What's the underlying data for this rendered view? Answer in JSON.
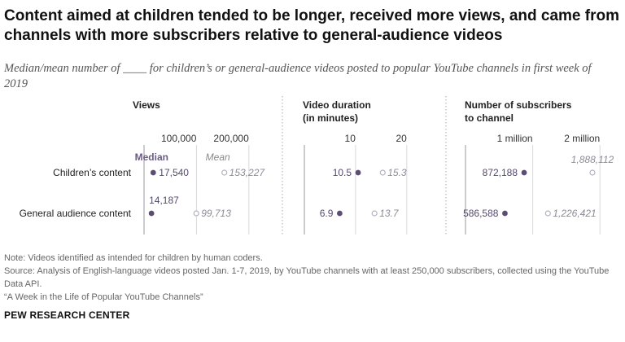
{
  "header": {
    "title": "Content aimed at children tended to be longer, received more views, and came from channels with more subscribers relative to general-audience videos",
    "subtitle": "Median/mean number of ____ for children’s or general-audience videos posted to popular YouTube channels in first week of 2019"
  },
  "colors": {
    "median": "#5b4e72",
    "mean": "#b5b1c0",
    "grid": "#d9d9d9",
    "divider": "#aaaaaa"
  },
  "chart_data": {
    "type": "dot",
    "rows": [
      "Children’s content",
      "General audience content"
    ],
    "legend": {
      "median": "Median",
      "mean": "Mean"
    },
    "panels": [
      {
        "title_lines": [
          "Views"
        ],
        "range": [
          0,
          250000
        ],
        "ticks": [
          100000,
          200000
        ],
        "tick_labels": [
          "100,000",
          "200,000"
        ],
        "median": [
          17540,
          14187
        ],
        "mean": [
          153227,
          99713
        ],
        "median_labels": [
          "17,540",
          "14,187"
        ],
        "mean_labels": [
          "153,227",
          "99,713"
        ]
      },
      {
        "title_lines": [
          "Video duration",
          "(in minutes)"
        ],
        "range": [
          0,
          24
        ],
        "ticks": [
          10,
          20
        ],
        "tick_labels": [
          "10",
          "20"
        ],
        "median": [
          10.5,
          6.9
        ],
        "mean": [
          15.3,
          13.7
        ],
        "median_labels": [
          "10.5",
          "6.9"
        ],
        "mean_labels": [
          "15.3",
          "13.7"
        ]
      },
      {
        "title_lines": [
          "Number of subscribers",
          "to channel"
        ],
        "range": [
          0,
          2300000
        ],
        "ticks": [
          1000000,
          2000000
        ],
        "tick_labels": [
          "1 million",
          "2 million"
        ],
        "median": [
          872188,
          586588
        ],
        "mean": [
          1888112,
          1226421
        ],
        "median_labels": [
          "872,188",
          "586,588"
        ],
        "mean_labels": [
          "1,888,112",
          "1,226,421"
        ]
      }
    ]
  },
  "footer": {
    "note": "Note: Videos identified as intended for children by human coders.",
    "source": "Source: Analysis of English-language videos posted Jan. 1-7, 2019, by YouTube channels with at least 250,000 subscribers, collected using the YouTube Data API.",
    "report": "“A Week in the Life of Popular YouTube Channels”",
    "credit": "PEW RESEARCH CENTER"
  }
}
